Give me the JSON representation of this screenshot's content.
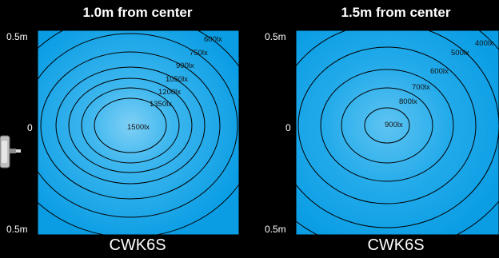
{
  "panels": [
    {
      "title": "1.0m from center",
      "y_top": "0.5m",
      "y_mid": "0",
      "y_bottom": "0.5m",
      "footer": "CWK6S",
      "contours": [
        "1500lx",
        "1350lx",
        "1200lx",
        "1050lx",
        "900lx",
        "750lx",
        "600lx"
      ]
    },
    {
      "title": "1.5m from center",
      "y_top": "0.5m",
      "y_mid": "0",
      "y_bottom": "0.5m",
      "footer": "CWK6S",
      "contours": [
        "900lx",
        "800lx",
        "700lx",
        "600lx",
        "500lx",
        "400lx"
      ]
    }
  ],
  "colors": {
    "background": "#000000",
    "field": "#0aa0e6",
    "center_glow": "#7fd0f5",
    "contour_line": "#000000"
  },
  "icons": {
    "fixture": "light-fixture-icon"
  }
}
